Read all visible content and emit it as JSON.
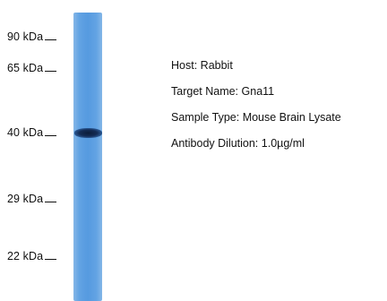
{
  "markers": [
    {
      "label": "90 kDa"
    },
    {
      "label": "65 kDa"
    },
    {
      "label": "40 kDa"
    },
    {
      "label": "29 kDa"
    },
    {
      "label": "22 kDa"
    }
  ],
  "info": {
    "host": {
      "key": "Host:",
      "value": "Rabbit"
    },
    "target": {
      "key": "Target Name:",
      "value": "Gna11"
    },
    "sample": {
      "key": "Sample Type:",
      "value": "Mouse Brain Lysate"
    },
    "dilution": {
      "key": "Antibody Dilution:",
      "value": "1.0µg/ml"
    }
  },
  "colors": {
    "lane": "#4d95de",
    "band": "#142c56"
  }
}
